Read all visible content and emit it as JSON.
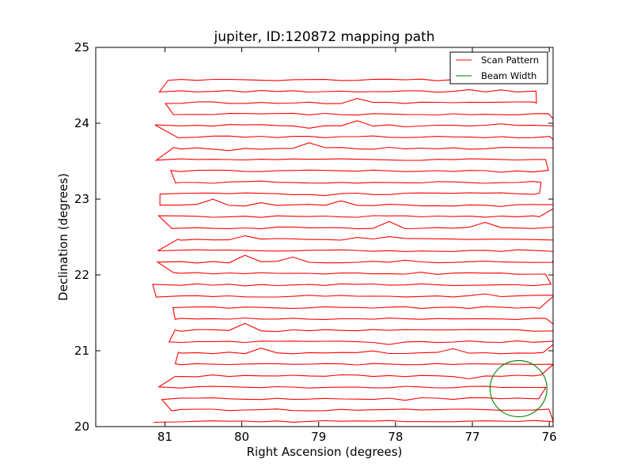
{
  "chart_data": {
    "type": "line",
    "title": "jupiter, ID:120872 mapping path",
    "xlabel": "Right Ascension (degrees)",
    "ylabel": "Declination (degrees)",
    "xlim": [
      81.9,
      75.95
    ],
    "ylim": [
      20,
      25
    ],
    "x_reversed": true,
    "xticks": [
      81,
      80,
      79,
      78,
      77,
      76
    ],
    "yticks": [
      20,
      21,
      22,
      23,
      24,
      25
    ],
    "xtick_labels": [
      "81",
      "80",
      "79",
      "78",
      "77",
      "76"
    ],
    "ytick_labels": [
      "20",
      "21",
      "22",
      "23",
      "24",
      "25"
    ],
    "grid": false,
    "legend_position": "top-right",
    "series": [
      {
        "name": "Scan Pattern",
        "color": "#ff0000",
        "pattern": "boustrophedon raster scan",
        "ra_range": [
          81.0,
          76.0
        ],
        "dec_start": 20.07,
        "dec_end": 24.57,
        "row_spacing_dec": 0.15,
        "row_count": 31
      },
      {
        "name": "Beam Width",
        "color": "#008000",
        "shape": "circle",
        "center_ra": 76.4,
        "center_dec": 20.5,
        "radius_deg": 0.37
      }
    ]
  }
}
